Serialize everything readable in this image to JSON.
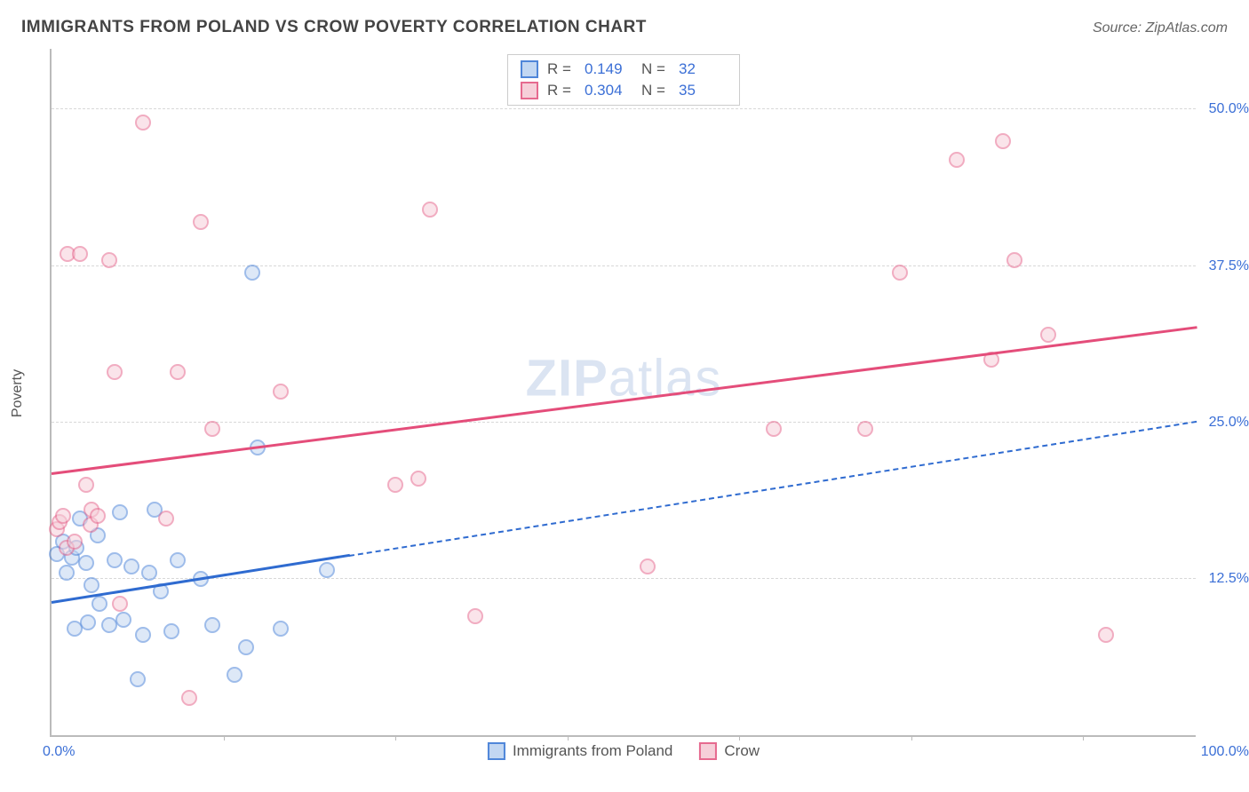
{
  "header": {
    "title": "IMMIGRANTS FROM POLAND VS CROW POVERTY CORRELATION CHART",
    "source_prefix": "Source: ",
    "source_name": "ZipAtlas.com"
  },
  "watermark": {
    "bold": "ZIP",
    "rest": "atlas"
  },
  "chart": {
    "type": "scatter",
    "xlim": [
      0,
      100
    ],
    "ylim": [
      0,
      55
    ],
    "ylabel": "Poverty",
    "x_axis_labels": {
      "left": "0.0%",
      "right": "100.0%"
    },
    "y_ticks": [
      {
        "value": 12.5,
        "label": "12.5%"
      },
      {
        "value": 25.0,
        "label": "25.0%"
      },
      {
        "value": 37.5,
        "label": "37.5%"
      },
      {
        "value": 50.0,
        "label": "50.0%"
      }
    ],
    "x_tick_positions": [
      15,
      30,
      45,
      60,
      75,
      90
    ],
    "background_color": "#ffffff",
    "grid_color": "#d8d8d8",
    "marker_radius": 9,
    "marker_stroke_width": 2,
    "series": [
      {
        "name": "Immigrants from Poland",
        "key": "poland",
        "fill": "#c2d7f2",
        "stroke": "#4f86d9",
        "fill_opacity": 0.55,
        "R": "0.149",
        "N": "32",
        "trend": {
          "y_at_x0": 10.5,
          "y_at_x100": 25.0,
          "solid_until_x": 26,
          "color": "#2f6bd0"
        },
        "points": [
          [
            0.5,
            14.5
          ],
          [
            1,
            15.5
          ],
          [
            1.3,
            13.0
          ],
          [
            1.8,
            14.2
          ],
          [
            2,
            8.5
          ],
          [
            2.2,
            15.0
          ],
          [
            2.5,
            17.3
          ],
          [
            3,
            13.8
          ],
          [
            3.2,
            9.0
          ],
          [
            3.5,
            12.0
          ],
          [
            4,
            16.0
          ],
          [
            4.2,
            10.5
          ],
          [
            5,
            8.8
          ],
          [
            5.5,
            14.0
          ],
          [
            6,
            17.8
          ],
          [
            6.3,
            9.2
          ],
          [
            7,
            13.5
          ],
          [
            7.5,
            4.5
          ],
          [
            8,
            8.0
          ],
          [
            8.5,
            13.0
          ],
          [
            9,
            18.0
          ],
          [
            9.5,
            11.5
          ],
          [
            10.5,
            8.3
          ],
          [
            11,
            14.0
          ],
          [
            13,
            12.5
          ],
          [
            14,
            8.8
          ],
          [
            16,
            4.8
          ],
          [
            17,
            7.0
          ],
          [
            17.5,
            37.0
          ],
          [
            18,
            23.0
          ],
          [
            20,
            8.5
          ],
          [
            24,
            13.2
          ]
        ]
      },
      {
        "name": "Crow",
        "key": "crow",
        "fill": "#f6cfd9",
        "stroke": "#e66a8f",
        "fill_opacity": 0.55,
        "R": "0.304",
        "N": "35",
        "trend": {
          "y_at_x0": 20.8,
          "y_at_x100": 32.5,
          "solid_until_x": 100,
          "color": "#e44d7a"
        },
        "points": [
          [
            0.5,
            16.5
          ],
          [
            0.7,
            17.0
          ],
          [
            1,
            17.5
          ],
          [
            1.3,
            15.0
          ],
          [
            1.4,
            38.5
          ],
          [
            2,
            15.5
          ],
          [
            2.5,
            38.5
          ],
          [
            3,
            20.0
          ],
          [
            3.4,
            16.8
          ],
          [
            3.5,
            18.0
          ],
          [
            4,
            17.5
          ],
          [
            5,
            38.0
          ],
          [
            5.5,
            29.0
          ],
          [
            6,
            10.5
          ],
          [
            8,
            49.0
          ],
          [
            10,
            17.3
          ],
          [
            11,
            29.0
          ],
          [
            12,
            3.0
          ],
          [
            13,
            41.0
          ],
          [
            14,
            24.5
          ],
          [
            20,
            27.5
          ],
          [
            30,
            20.0
          ],
          [
            32,
            20.5
          ],
          [
            33,
            42.0
          ],
          [
            37,
            9.5
          ],
          [
            52,
            13.5
          ],
          [
            63,
            24.5
          ],
          [
            71,
            24.5
          ],
          [
            74,
            37.0
          ],
          [
            79,
            46.0
          ],
          [
            82,
            30.0
          ],
          [
            83,
            47.5
          ],
          [
            84,
            38.0
          ],
          [
            87,
            32.0
          ],
          [
            92,
            8.0
          ]
        ]
      }
    ],
    "legend_top_labels": {
      "R_label": "R =",
      "N_label": "N ="
    }
  }
}
